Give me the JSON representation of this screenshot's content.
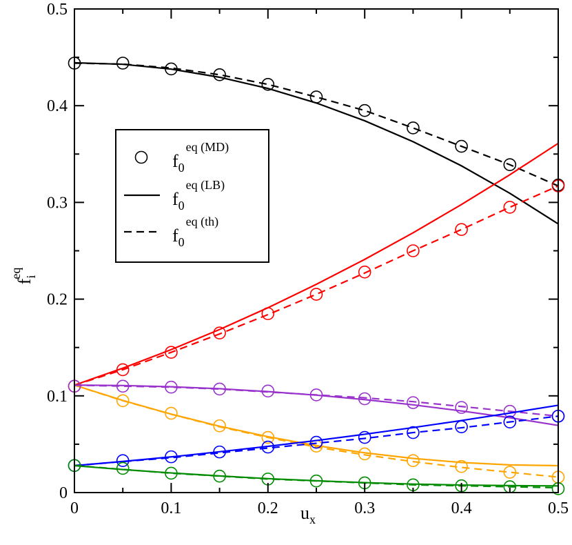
{
  "chart_data": {
    "type": "line",
    "title": "",
    "xlabel": {
      "base": "u",
      "sub": "x"
    },
    "ylabel": {
      "base": "f",
      "sub": "i",
      "sup": "eq"
    },
    "xlim": [
      0,
      0.5
    ],
    "ylim": [
      0,
      0.5
    ],
    "xticks": [
      "0",
      "0.1",
      "0.2",
      "0.3",
      "0.4",
      "0.5"
    ],
    "yticks": [
      "0",
      "0.1",
      "0.2",
      "0.3",
      "0.4",
      "0.5"
    ],
    "grid": false,
    "legend": {
      "placement": "upper-left-center",
      "entries": [
        {
          "style": "circle",
          "base": "f",
          "sub": "0",
          "sup": "eq (MD)"
        },
        {
          "style": "solid",
          "base": "f",
          "sub": "0",
          "sup": "eq (LB)"
        },
        {
          "style": "dashed",
          "base": "f",
          "sub": "0",
          "sup": "eq (th)"
        }
      ]
    },
    "x": [
      0,
      0.05,
      0.1,
      0.15,
      0.2,
      0.25,
      0.3,
      0.35,
      0.4,
      0.45,
      0.5
    ],
    "groups": [
      {
        "color": "#000000",
        "md": [
          0.444,
          0.444,
          0.438,
          0.432,
          0.422,
          0.409,
          0.395,
          0.377,
          0.358,
          0.339,
          0.318
        ],
        "lb": [
          0.4444,
          0.4428,
          0.4378,
          0.4294,
          0.4178,
          0.4028,
          0.3844,
          0.3628,
          0.3378,
          0.3094,
          0.2778
        ],
        "th": [
          0.444,
          0.443,
          0.439,
          0.432,
          0.422,
          0.409,
          0.395,
          0.377,
          0.358,
          0.339,
          0.317
        ]
      },
      {
        "color": "#ff0000",
        "md": [
          0.11,
          0.127,
          0.145,
          0.165,
          0.185,
          0.205,
          0.228,
          0.25,
          0.272,
          0.295,
          0.317
        ],
        "lb": [
          0.1111,
          0.1286,
          0.1478,
          0.1686,
          0.1911,
          0.2153,
          0.2411,
          0.2686,
          0.2978,
          0.3286,
          0.3611
        ],
        "th": [
          0.111,
          0.127,
          0.145,
          0.164,
          0.184,
          0.205,
          0.227,
          0.25,
          0.272,
          0.295,
          0.317
        ]
      },
      {
        "color": "#ffa500",
        "md": [
          0.11,
          0.095,
          0.082,
          0.069,
          0.057,
          0.048,
          0.04,
          0.033,
          0.027,
          0.021,
          0.016
        ],
        "lb": [
          0.1111,
          0.0953,
          0.0811,
          0.0686,
          0.0578,
          0.0486,
          0.0411,
          0.0353,
          0.0311,
          0.0286,
          0.0278
        ],
        "th": [
          0.111,
          0.095,
          0.081,
          0.068,
          0.057,
          0.047,
          0.039,
          0.032,
          0.026,
          0.021,
          0.016
        ]
      },
      {
        "color": "#9932cc",
        "md": [
          0.11,
          0.11,
          0.109,
          0.107,
          0.105,
          0.101,
          0.097,
          0.093,
          0.088,
          0.084,
          0.079
        ],
        "lb": [
          0.1111,
          0.1107,
          0.1094,
          0.1074,
          0.1044,
          0.1007,
          0.0961,
          0.0907,
          0.0844,
          0.0774,
          0.0694
        ],
        "th": [
          0.111,
          0.11,
          0.109,
          0.107,
          0.104,
          0.101,
          0.098,
          0.094,
          0.089,
          0.084,
          0.079
        ]
      },
      {
        "color": "#0000ff",
        "md": [
          0.028,
          0.033,
          0.037,
          0.042,
          0.047,
          0.052,
          0.057,
          0.062,
          0.068,
          0.073,
          0.079
        ],
        "lb": [
          0.0278,
          0.0322,
          0.0369,
          0.0422,
          0.0478,
          0.0538,
          0.0603,
          0.0672,
          0.0745,
          0.0822,
          0.0903
        ],
        "th": [
          0.028,
          0.032,
          0.036,
          0.041,
          0.046,
          0.051,
          0.056,
          0.062,
          0.067,
          0.073,
          0.079
        ]
      },
      {
        "color": "#008b00",
        "md": [
          0.028,
          0.025,
          0.02,
          0.017,
          0.014,
          0.012,
          0.01,
          0.008,
          0.007,
          0.006,
          0.004
        ],
        "lb": [
          0.0278,
          0.0238,
          0.0203,
          0.0172,
          0.0144,
          0.0122,
          0.0103,
          0.0088,
          0.0078,
          0.0072,
          0.0069
        ],
        "th": [
          0.028,
          0.024,
          0.02,
          0.017,
          0.014,
          0.012,
          0.01,
          0.008,
          0.007,
          0.006,
          0.005
        ]
      }
    ]
  }
}
